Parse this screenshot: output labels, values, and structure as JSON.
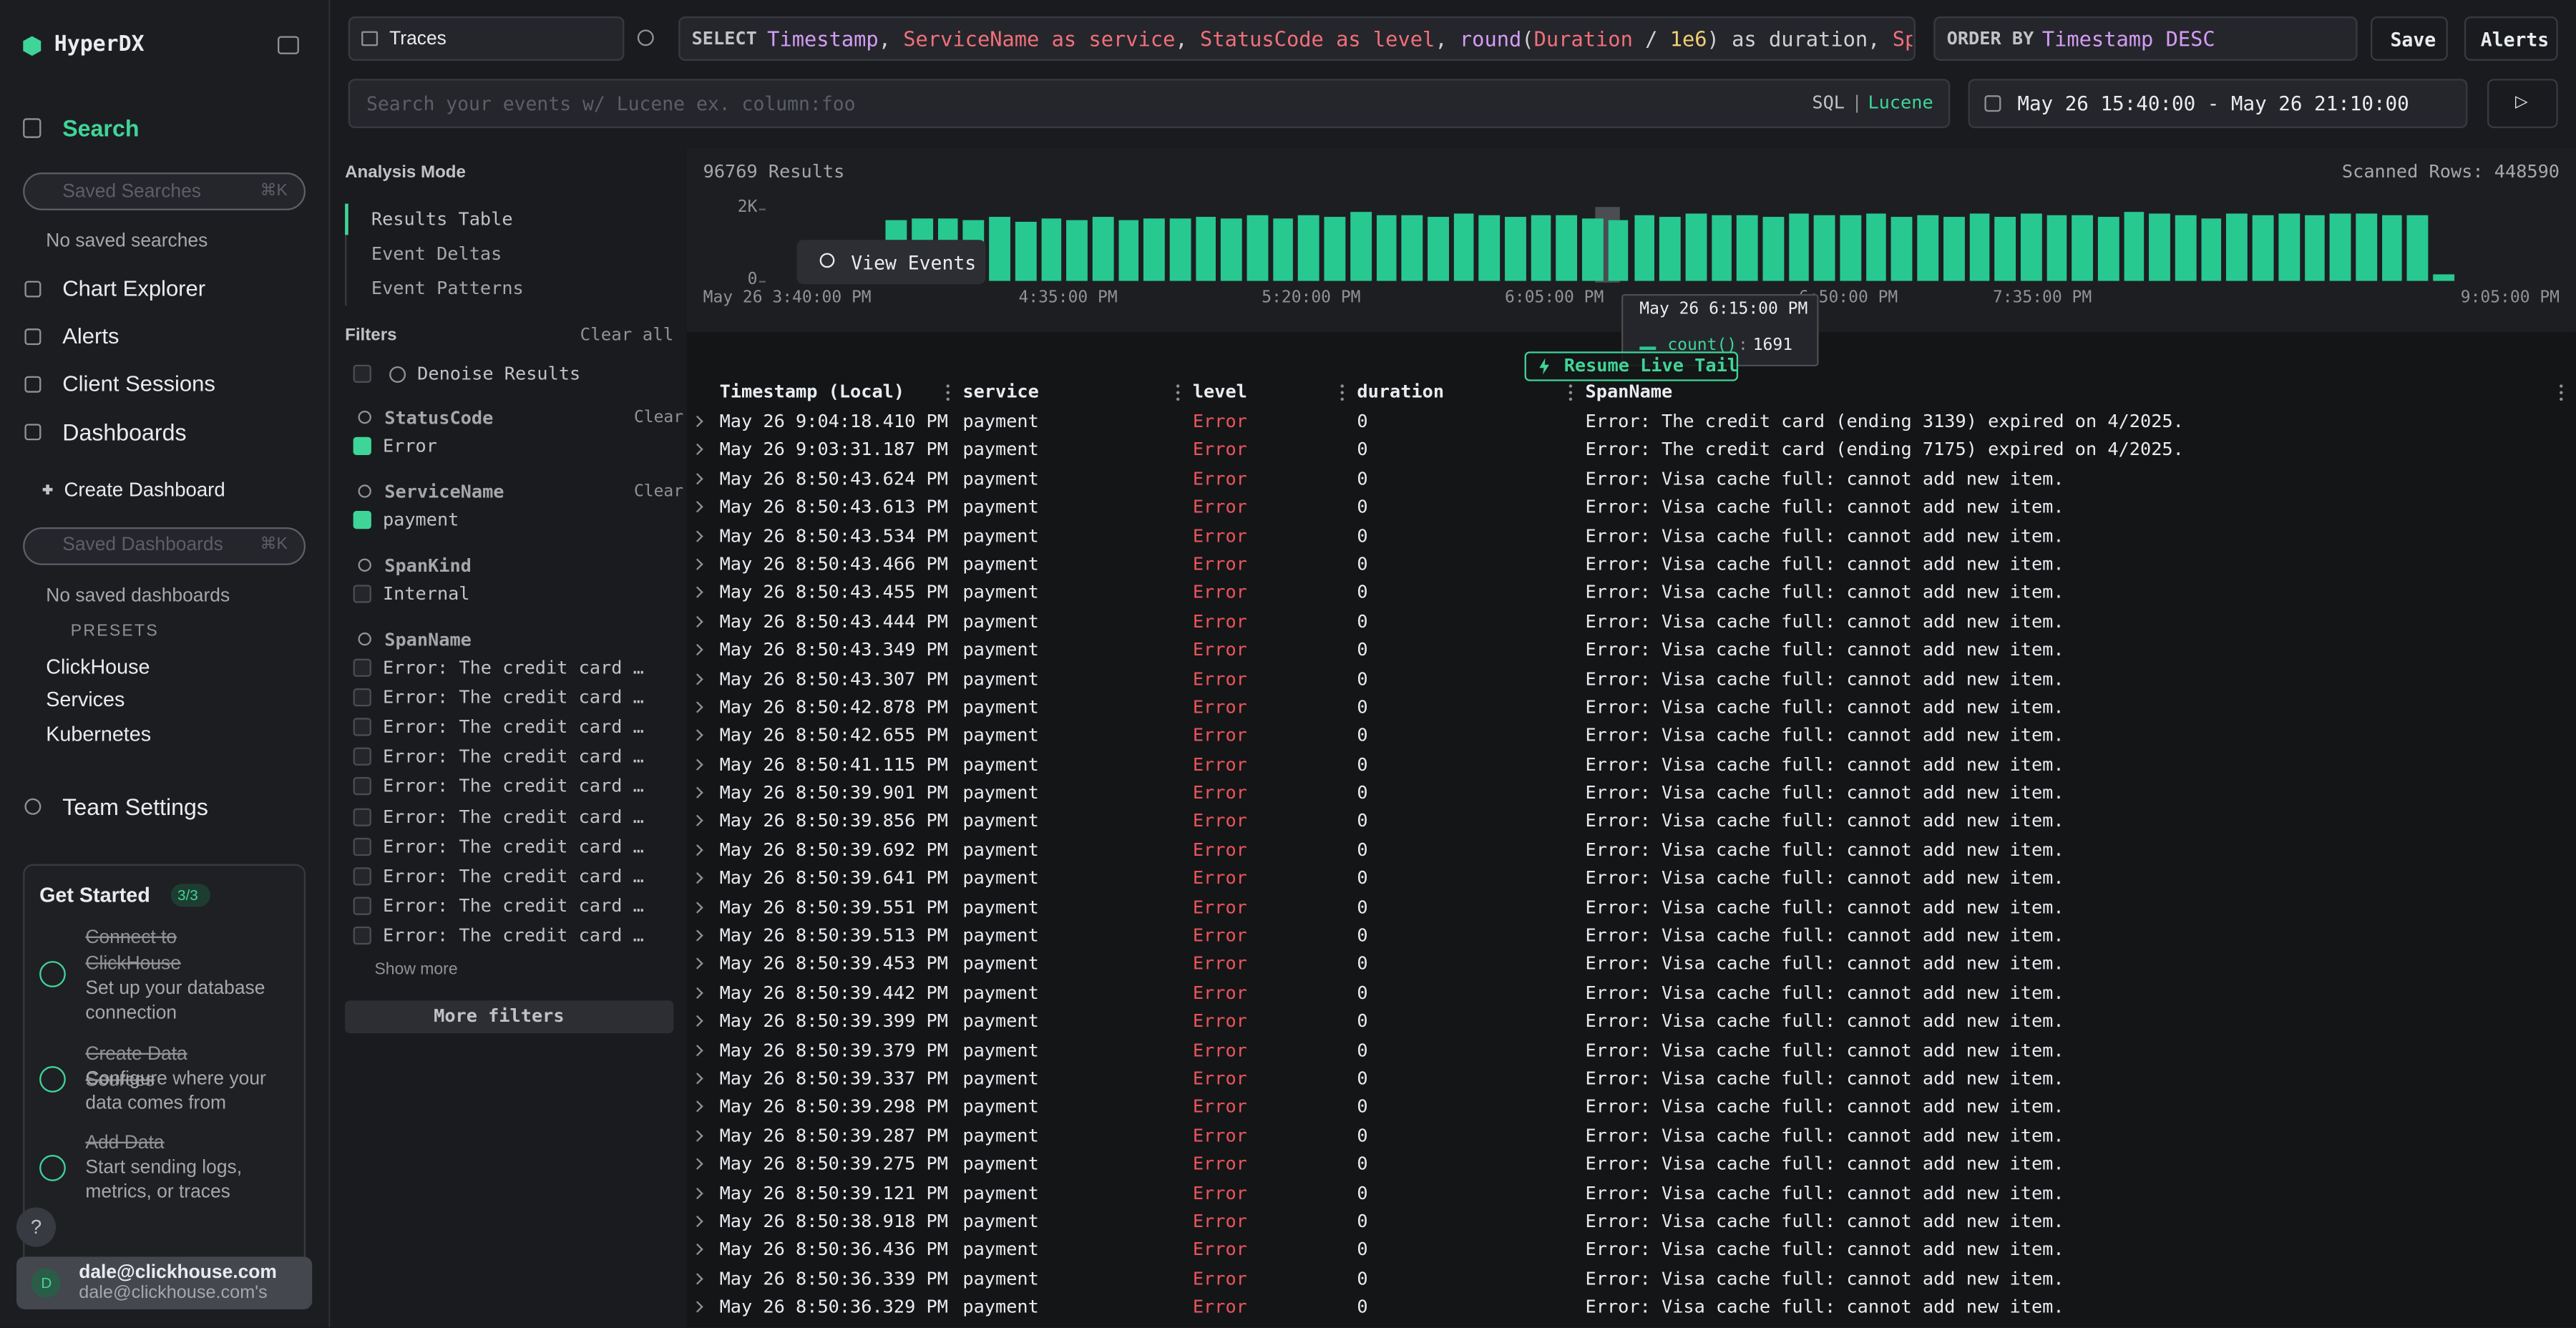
{
  "sidebar": {
    "brand": "HyperDX",
    "search": {
      "label": "Search",
      "placeholder": "Saved Searches",
      "shortcut": "⌘K",
      "empty": "No saved searches"
    },
    "nav": [
      "Chart Explorer",
      "Alerts",
      "Client Sessions"
    ],
    "dashboards": {
      "label": "Dashboards",
      "create": "Create Dashboard",
      "placeholder": "Saved Dashboards",
      "shortcut": "⌘K",
      "empty": "No saved dashboards",
      "presets_label": "PRESETS",
      "presets": [
        "ClickHouse",
        "Services",
        "Kubernetes"
      ]
    },
    "team_settings": "Team Settings",
    "get_started": {
      "title": "Get Started",
      "progress": "3/3",
      "steps": [
        {
          "title": "Connect to ClickHouse",
          "desc": "Set up your database connection"
        },
        {
          "title": "Create Data Sources",
          "desc": "Configure where your data comes from"
        },
        {
          "title": "Add Data",
          "desc": "Start sending logs, metrics, or traces"
        }
      ]
    },
    "help": "?",
    "user": {
      "initial": "D",
      "email": "dale@clickhouse.com",
      "team": "dale@clickhouse.com's"
    }
  },
  "toolbar": {
    "source": "Traces",
    "select_keyword": "SELECT",
    "select_tokens": [
      {
        "text": "Timestamp",
        "color": "#d49cf5"
      },
      {
        "text": ", ",
        "color": "#d0d0d0"
      },
      {
        "text": "ServiceName as service",
        "color": "#f0707a"
      },
      {
        "text": ", ",
        "color": "#d0d0d0"
      },
      {
        "text": "StatusCode as level",
        "color": "#f0707a"
      },
      {
        "text": ", ",
        "color": "#d0d0d0"
      },
      {
        "text": "round",
        "color": "#d49cf5"
      },
      {
        "text": "(",
        "color": "#d0d0d0"
      },
      {
        "text": "Duration",
        "color": "#f0707a"
      },
      {
        "text": " / ",
        "color": "#d0d0d0"
      },
      {
        "text": "1e6",
        "color": "#f2cf74"
      },
      {
        "text": ") as duration, ",
        "color": "#d0d0d0"
      },
      {
        "text": "Span",
        "color": "#f0707a"
      }
    ],
    "order_keyword": "ORDER BY",
    "order_value": "Timestamp DESC",
    "save": "Save",
    "alerts": "Alerts",
    "search_placeholder": "Search your events w/ Lucene ex. column:foo",
    "mode_sql": "SQL",
    "mode_sep": "|",
    "mode_lucene": "Lucene",
    "time_range": "May 26 15:40:00 - May 26 21:10:00",
    "run": "▷"
  },
  "analysis": {
    "title": "Analysis Mode",
    "options": [
      "Results Table",
      "Event Deltas",
      "Event Patterns"
    ]
  },
  "filters": {
    "title": "Filters",
    "clear_all": "Clear all",
    "denoise": "Denoise Results",
    "groups": [
      {
        "name": "StatusCode",
        "clear": "Clear",
        "items": [
          {
            "label": "Error",
            "checked": true
          }
        ]
      },
      {
        "name": "ServiceName",
        "clear": "Clear",
        "items": [
          {
            "label": "payment",
            "checked": true
          }
        ]
      },
      {
        "name": "SpanKind",
        "items": [
          {
            "label": "Internal",
            "checked": false
          }
        ]
      },
      {
        "name": "SpanName",
        "items": [
          {
            "label": "Error: The credit card …",
            "checked": false
          },
          {
            "label": "Error: The credit card …",
            "checked": false
          },
          {
            "label": "Error: The credit card …",
            "checked": false
          },
          {
            "label": "Error: The credit card …",
            "checked": false
          },
          {
            "label": "Error: The credit card …",
            "checked": false
          },
          {
            "label": "Error: The credit card …",
            "checked": false
          },
          {
            "label": "Error: The credit card …",
            "checked": false
          },
          {
            "label": "Error: The credit card …",
            "checked": false
          },
          {
            "label": "Error: The credit card …",
            "checked": false
          },
          {
            "label": "Error: The credit card …",
            "checked": false
          }
        ]
      }
    ],
    "show_more": "Show more",
    "more_filters": "More filters"
  },
  "results": {
    "count": "96769 Results",
    "scanned": "Scanned Rows: 448590",
    "view_events": "View Events",
    "resume": "Resume Live Tail"
  },
  "chart_data": {
    "type": "bar",
    "color": "#27c990",
    "ylim": [
      0,
      2000
    ],
    "yticks": [
      0,
      {
        "value": 2000,
        "label": "2K"
      }
    ],
    "xticks": [
      "May 26 3:40:00 PM",
      "4:35:00 PM",
      "5:20:00 PM",
      "6:05:00 PM",
      "6:50:00 PM",
      "7:35:00 PM",
      "9:05:00 PM"
    ],
    "values": [
      0,
      0,
      0,
      0,
      0,
      0,
      0,
      1700,
      1750,
      1720,
      1680,
      1760,
      1640,
      1720,
      1700,
      1780,
      1690,
      1730,
      1710,
      1760,
      1740,
      1800,
      1720,
      1830,
      1760,
      1900,
      1820,
      1840,
      1770,
      1860,
      1810,
      1780,
      1820,
      1800,
      1750,
      1691,
      1830,
      1790,
      1850,
      1810,
      1840,
      1780,
      1880,
      1830,
      1800,
      1860,
      1770,
      1820,
      1790,
      1850,
      1760,
      1880,
      1810,
      1840,
      1790,
      1900,
      1860,
      1830,
      1750,
      1870,
      1820,
      1860,
      1800,
      1850,
      1870,
      1830,
      1840,
      200,
      0,
      0,
      0,
      0
    ],
    "tooltip": {
      "time": "May 26 6:15:00 PM",
      "label": "count()"
    }
  },
  "table": {
    "level_color": "#e8555b",
    "columns": [
      "Timestamp (Local)",
      "service",
      "level",
      "duration",
      "SpanName"
    ],
    "rows": [
      [
        "May 26 9:04:18.410 PM",
        "payment",
        "Error",
        0,
        "Error: The credit card (ending 3139) expired on 4/2025."
      ],
      [
        "May 26 9:03:31.187 PM",
        "payment",
        "Error",
        0,
        "Error: The credit card (ending 7175) expired on 4/2025."
      ],
      [
        "May 26 8:50:43.624 PM",
        "payment",
        "Error",
        0,
        "Error: Visa cache full: cannot add new item."
      ],
      [
        "May 26 8:50:43.613 PM",
        "payment",
        "Error",
        0,
        "Error: Visa cache full: cannot add new item."
      ],
      [
        "May 26 8:50:43.534 PM",
        "payment",
        "Error",
        0,
        "Error: Visa cache full: cannot add new item."
      ],
      [
        "May 26 8:50:43.466 PM",
        "payment",
        "Error",
        0,
        "Error: Visa cache full: cannot add new item."
      ],
      [
        "May 26 8:50:43.455 PM",
        "payment",
        "Error",
        0,
        "Error: Visa cache full: cannot add new item."
      ],
      [
        "May 26 8:50:43.444 PM",
        "payment",
        "Error",
        0,
        "Error: Visa cache full: cannot add new item."
      ],
      [
        "May 26 8:50:43.349 PM",
        "payment",
        "Error",
        0,
        "Error: Visa cache full: cannot add new item."
      ],
      [
        "May 26 8:50:43.307 PM",
        "payment",
        "Error",
        0,
        "Error: Visa cache full: cannot add new item."
      ],
      [
        "May 26 8:50:42.878 PM",
        "payment",
        "Error",
        0,
        "Error: Visa cache full: cannot add new item."
      ],
      [
        "May 26 8:50:42.655 PM",
        "payment",
        "Error",
        0,
        "Error: Visa cache full: cannot add new item."
      ],
      [
        "May 26 8:50:41.115 PM",
        "payment",
        "Error",
        0,
        "Error: Visa cache full: cannot add new item."
      ],
      [
        "May 26 8:50:39.901 PM",
        "payment",
        "Error",
        0,
        "Error: Visa cache full: cannot add new item."
      ],
      [
        "May 26 8:50:39.856 PM",
        "payment",
        "Error",
        0,
        "Error: Visa cache full: cannot add new item."
      ],
      [
        "May 26 8:50:39.692 PM",
        "payment",
        "Error",
        0,
        "Error: Visa cache full: cannot add new item."
      ],
      [
        "May 26 8:50:39.641 PM",
        "payment",
        "Error",
        0,
        "Error: Visa cache full: cannot add new item."
      ],
      [
        "May 26 8:50:39.551 PM",
        "payment",
        "Error",
        0,
        "Error: Visa cache full: cannot add new item."
      ],
      [
        "May 26 8:50:39.513 PM",
        "payment",
        "Error",
        0,
        "Error: Visa cache full: cannot add new item."
      ],
      [
        "May 26 8:50:39.453 PM",
        "payment",
        "Error",
        0,
        "Error: Visa cache full: cannot add new item."
      ],
      [
        "May 26 8:50:39.442 PM",
        "payment",
        "Error",
        0,
        "Error: Visa cache full: cannot add new item."
      ],
      [
        "May 26 8:50:39.399 PM",
        "payment",
        "Error",
        0,
        "Error: Visa cache full: cannot add new item."
      ],
      [
        "May 26 8:50:39.379 PM",
        "payment",
        "Error",
        0,
        "Error: Visa cache full: cannot add new item."
      ],
      [
        "May 26 8:50:39.337 PM",
        "payment",
        "Error",
        0,
        "Error: Visa cache full: cannot add new item."
      ],
      [
        "May 26 8:50:39.298 PM",
        "payment",
        "Error",
        0,
        "Error: Visa cache full: cannot add new item."
      ],
      [
        "May 26 8:50:39.287 PM",
        "payment",
        "Error",
        0,
        "Error: Visa cache full: cannot add new item."
      ],
      [
        "May 26 8:50:39.275 PM",
        "payment",
        "Error",
        0,
        "Error: Visa cache full: cannot add new item."
      ],
      [
        "May 26 8:50:39.121 PM",
        "payment",
        "Error",
        0,
        "Error: Visa cache full: cannot add new item."
      ],
      [
        "May 26 8:50:38.918 PM",
        "payment",
        "Error",
        0,
        "Error: Visa cache full: cannot add new item."
      ],
      [
        "May 26 8:50:36.436 PM",
        "payment",
        "Error",
        0,
        "Error: Visa cache full: cannot add new item."
      ],
      [
        "May 26 8:50:36.339 PM",
        "payment",
        "Error",
        0,
        "Error: Visa cache full: cannot add new item."
      ],
      [
        "May 26 8:50:36.329 PM",
        "payment",
        "Error",
        0,
        "Error: Visa cache full: cannot add new item."
      ]
    ]
  }
}
